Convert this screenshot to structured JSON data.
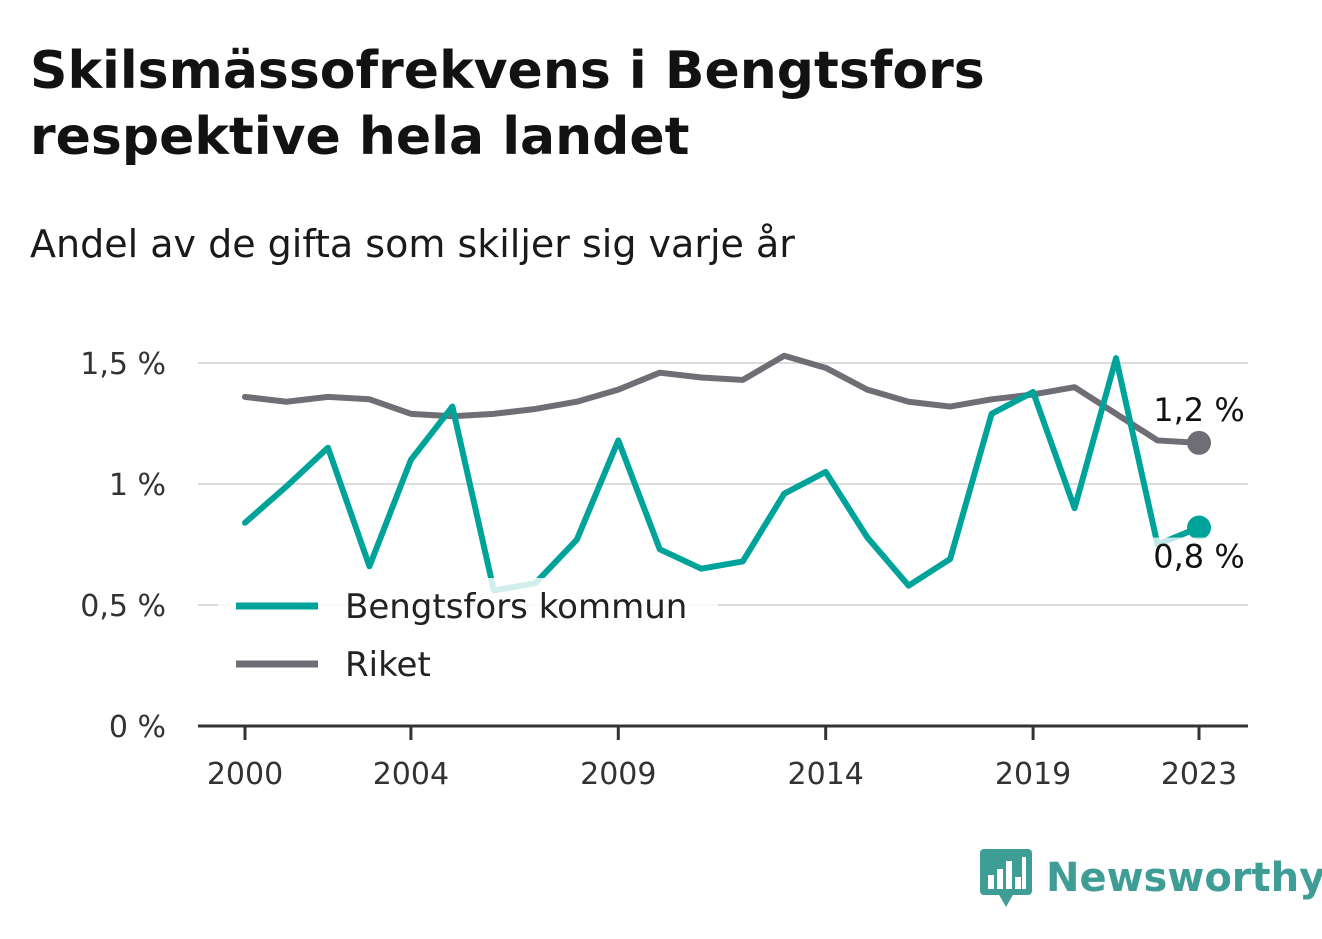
{
  "title": "Skilsmässofrekvens i Bengtsfors respektive hela landet",
  "subtitle": "Andel av de gifta som skiljer sig varje år",
  "brand": {
    "name": "Newsworthy",
    "icon": "bar-chart-speech-bubble-icon",
    "color": "#3e9d95"
  },
  "chart_data": {
    "type": "line",
    "x": [
      2000,
      2001,
      2002,
      2003,
      2004,
      2005,
      2006,
      2007,
      2008,
      2009,
      2010,
      2011,
      2012,
      2013,
      2014,
      2015,
      2016,
      2017,
      2018,
      2019,
      2020,
      2021,
      2022,
      2023
    ],
    "x_ticks": [
      "2000",
      "2004",
      "2009",
      "2014",
      "2019",
      "2023"
    ],
    "y_ticks": [
      "0 %",
      "0,5 %",
      "1 %",
      "1,5 %"
    ],
    "ylim": [
      0,
      1.5
    ],
    "grid": true,
    "legend_position": "bottom-left",
    "series": [
      {
        "name": "Bengtsfors kommun",
        "color": "#00a39a",
        "values": [
          0.84,
          0.99,
          1.15,
          0.66,
          1.1,
          1.32,
          0.56,
          0.59,
          0.77,
          1.18,
          0.73,
          0.65,
          0.68,
          0.96,
          1.05,
          0.78,
          0.58,
          0.69,
          1.29,
          1.38,
          0.9,
          1.52,
          0.75,
          0.82
        ],
        "end_label": "0,8 %"
      },
      {
        "name": "Riket",
        "color": "#6f6e75",
        "values": [
          1.36,
          1.34,
          1.36,
          1.35,
          1.29,
          1.28,
          1.29,
          1.31,
          1.34,
          1.39,
          1.46,
          1.44,
          1.43,
          1.53,
          1.48,
          1.39,
          1.34,
          1.32,
          1.35,
          1.37,
          1.4,
          1.29,
          1.18,
          1.17
        ],
        "end_label": "1,2 %"
      }
    ]
  }
}
